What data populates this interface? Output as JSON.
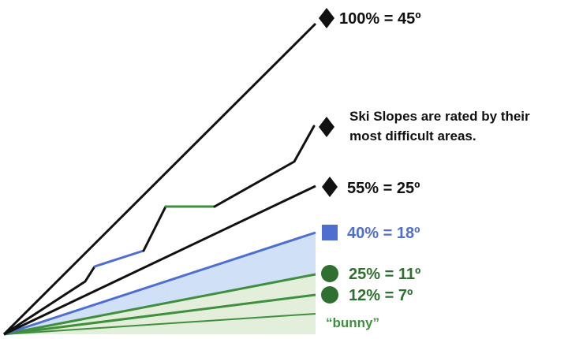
{
  "colors": {
    "black": "#111111",
    "blue": "#4f6fd0",
    "blue_fill": "#cfe0f7",
    "green": "#3f8f3f",
    "green_fill": "#e3efda",
    "dark_green": "#2f6f2f"
  },
  "labels": {
    "double_black": "100% = 45º",
    "note_line1": "Ski Slopes are rated by their",
    "note_line2": "most difficult areas.",
    "black": "55% = 25º",
    "blue": "40% = 18º",
    "green": "25% = 11º",
    "easy_green": "12% = 7º",
    "bunny": "“bunny”"
  },
  "icons": {
    "double_black": "black-diamond-icon",
    "trail": "black-diamond-icon",
    "black": "black-diamond-icon",
    "blue": "blue-square-icon",
    "green": "green-circle-icon",
    "easy_green": "green-circle-icon"
  }
}
